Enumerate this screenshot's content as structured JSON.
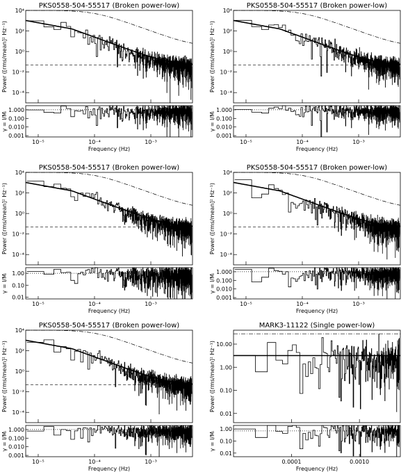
{
  "chart_data": [
    {
      "type": "line",
      "title": "PKS0558-504-55517 (Broken power-low)",
      "xlabel": "Frequency (Hz)",
      "ylabel": "Power ([rms/mean]² Hz⁻¹)",
      "ratio_label": "γ = I/Mᵢ",
      "x_scale": "log",
      "y_scale": "log",
      "xlim": [
        6e-06,
        0.0055
      ],
      "ylim": [
        1e-05,
        10000.0
      ],
      "ratio_ylim": [
        0.0007,
        3
      ],
      "x_ticks": [
        1e-05,
        0.0001,
        0.001
      ],
      "x_tick_labels": [
        "10⁻⁵",
        "10⁻⁴",
        "10⁻³"
      ],
      "y_ticks": [
        10000.0,
        100.0,
        1.0,
        0.01,
        0.0001
      ],
      "y_tick_labels": [
        "10⁴",
        "10²",
        "10⁰",
        "10⁻²",
        "10⁻⁴"
      ],
      "ratio_ticks": [
        1,
        0.1,
        0.01,
        0.001
      ],
      "ratio_tick_labels": [
        "1.000",
        "0.100",
        "0.010",
        "0.001"
      ],
      "model": {
        "norm": 2000,
        "break_freq": 4e-05,
        "index_low": 1.0,
        "index_high": 2.0,
        "noise": 0.05
      },
      "upper_curve": {
        "norm": 10000,
        "break_freq": 0.0001,
        "floor": 3
      },
      "noise_level": 0.05,
      "ratio_ref": 1.0,
      "seed": 11
    },
    {
      "type": "line",
      "title": "PKS0558-504-55517 (Broken power-low)",
      "xlabel": "Frequency (Hz)",
      "ylabel": "Power ([rms/mean]² Hz⁻¹)",
      "ratio_label": "γ = I/Mᵢ",
      "x_scale": "log",
      "y_scale": "log",
      "xlim": [
        6e-06,
        0.0055
      ],
      "ylim": [
        1e-05,
        10000.0
      ],
      "ratio_ylim": [
        0.0007,
        3
      ],
      "x_ticks": [
        1e-05,
        0.0001,
        0.001
      ],
      "x_tick_labels": [
        "10⁻⁵",
        "10⁻⁴",
        "10⁻³"
      ],
      "y_ticks": [
        10000.0,
        100.0,
        1.0,
        0.01,
        0.0001
      ],
      "y_tick_labels": [
        "10⁴",
        "10²",
        "10⁰",
        "10⁻²",
        "10⁻⁴"
      ],
      "ratio_ticks": [
        1,
        0.1,
        0.01,
        0.001
      ],
      "ratio_tick_labels": [
        "1.000",
        "0.100",
        "0.010",
        "0.001"
      ],
      "model": {
        "norm": 2000,
        "break_freq": 4e-05,
        "index_low": 1.0,
        "index_high": 2.0,
        "noise": 0.05
      },
      "upper_curve": {
        "norm": 10000,
        "break_freq": 0.0001,
        "floor": 3
      },
      "noise_level": 0.05,
      "ratio_ref": 1.0,
      "seed": 23
    },
    {
      "type": "line",
      "title": "PKS0558-504-55517 (Broken power-low)",
      "xlabel": "Frequency (Hz)",
      "ylabel": "Power ([rms/mean]² Hz⁻¹)",
      "ratio_label": "γ = I/Mᵢ",
      "x_scale": "log",
      "y_scale": "log",
      "xlim": [
        6e-06,
        0.0055
      ],
      "ylim": [
        1e-05,
        10000.0
      ],
      "ratio_ylim": [
        0.007,
        3
      ],
      "x_ticks": [
        1e-05,
        0.0001,
        0.001
      ],
      "x_tick_labels": [
        "10⁻⁵",
        "10⁻⁴",
        "10⁻³"
      ],
      "y_ticks": [
        10000.0,
        100.0,
        1.0,
        0.01,
        0.0001
      ],
      "y_tick_labels": [
        "10⁴",
        "10²",
        "10⁰",
        "10⁻²",
        "10⁻⁴"
      ],
      "ratio_ticks": [
        1,
        0.1,
        0.01
      ],
      "ratio_tick_labels": [
        "1.00",
        "0.10",
        "0.01"
      ],
      "model": {
        "norm": 2000,
        "break_freq": 4e-05,
        "index_low": 1.0,
        "index_high": 2.0,
        "noise": 0.05
      },
      "upper_curve": {
        "norm": 10000,
        "break_freq": 0.0001,
        "floor": 3
      },
      "noise_level": 0.05,
      "ratio_ref": 1.0,
      "seed": 37
    },
    {
      "type": "line",
      "title": "PKS0558-504-55517 (Broken power-low)",
      "xlabel": "Frequency (Hz)",
      "ylabel": "Power ([rms/mean]² Hz⁻¹)",
      "ratio_label": "γ = I/Mᵢ",
      "x_scale": "log",
      "y_scale": "log",
      "xlim": [
        6e-06,
        0.0055
      ],
      "ylim": [
        1e-05,
        10000.0
      ],
      "ratio_ylim": [
        0.0007,
        3
      ],
      "x_ticks": [
        1e-05,
        0.0001,
        0.001
      ],
      "x_tick_labels": [
        "10⁻⁵",
        "10⁻⁴",
        "10⁻³"
      ],
      "y_ticks": [
        10000.0,
        100.0,
        1.0,
        0.01,
        0.0001
      ],
      "y_tick_labels": [
        "10⁴",
        "10²",
        "10⁰",
        "10⁻²",
        "10⁻⁴"
      ],
      "ratio_ticks": [
        1,
        0.1,
        0.01,
        0.001
      ],
      "ratio_tick_labels": [
        "1.000",
        "0.100",
        "0.010",
        "0.001"
      ],
      "model": {
        "norm": 2000,
        "break_freq": 4e-05,
        "index_low": 1.0,
        "index_high": 2.0,
        "noise": 0.05
      },
      "upper_curve": {
        "norm": 10000,
        "break_freq": 0.0001,
        "floor": 3
      },
      "noise_level": 0.05,
      "ratio_ref": 1.0,
      "seed": 41
    },
    {
      "type": "line",
      "title": "PKS0558-504-55517 (Broken power-low)",
      "xlabel": "Frequency (Hz)",
      "ylabel": "Power ([rms/mean]² Hz⁻¹)",
      "ratio_label": "γ = I/Mᵢ",
      "x_scale": "log",
      "y_scale": "log",
      "xlim": [
        6e-06,
        0.0055
      ],
      "ylim": [
        1e-05,
        10000.0
      ],
      "ratio_ylim": [
        0.0007,
        3
      ],
      "x_ticks": [
        1e-05,
        0.0001,
        0.001
      ],
      "x_tick_labels": [
        "10⁻⁵",
        "10⁻⁴",
        "10⁻³"
      ],
      "y_ticks": [
        10000.0,
        100.0,
        1.0,
        0.01,
        0.0001
      ],
      "y_tick_labels": [
        "10⁴",
        "10²",
        "10⁰",
        "10⁻²",
        "10⁻⁴"
      ],
      "ratio_ticks": [
        1,
        0.1,
        0.01,
        0.001
      ],
      "ratio_tick_labels": [
        "1.000",
        "0.100",
        "0.010",
        "0.001"
      ],
      "model": {
        "norm": 2000,
        "break_freq": 4e-05,
        "index_low": 1.0,
        "index_high": 2.0,
        "noise": 0.05
      },
      "upper_curve": {
        "norm": 10000,
        "break_freq": 0.0001,
        "floor": 3
      },
      "noise_level": 0.05,
      "ratio_ref": 1.0,
      "seed": 53
    },
    {
      "type": "line",
      "title": "MARK3-11122 (Single power-low)",
      "xlabel": "Frequency (Hz)",
      "ylabel": "Power ([rms/mean]² Hz⁻¹)",
      "ratio_label": "γ = I/Mᵢ",
      "x_scale": "log",
      "y_scale": "log",
      "xlim": [
        1.4e-05,
        0.004
      ],
      "ylim": [
        0.004,
        40
      ],
      "ratio_ylim": [
        0.005,
        2
      ],
      "x_ticks": [
        0.0001,
        0.001
      ],
      "x_tick_labels": [
        "0.0001",
        "0.0010"
      ],
      "y_ticks": [
        10,
        1,
        0.1,
        0.01
      ],
      "y_tick_labels": [
        "10.00",
        "1.00",
        "0.10",
        "0.01"
      ],
      "ratio_ticks": [
        1,
        0.1,
        0.01
      ],
      "ratio_tick_labels": [
        "1.00",
        "0.10",
        "0.01"
      ],
      "model": {
        "flat": 3.2
      },
      "upper_curve": {
        "flat": 28
      },
      "noise_level": null,
      "ratio_ref": 0.7,
      "seed": 67
    }
  ]
}
